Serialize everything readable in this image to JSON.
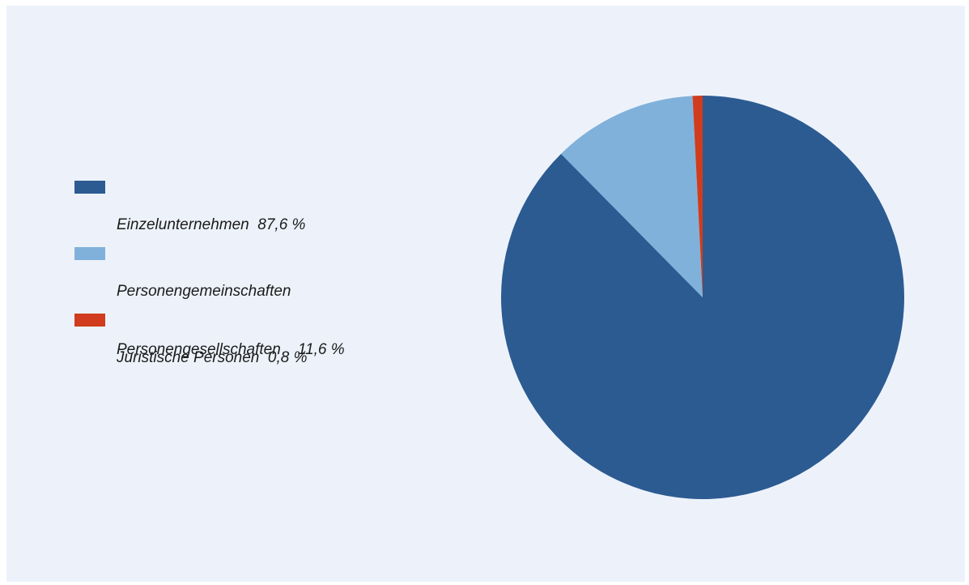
{
  "colors": {
    "background": "#edf2fa",
    "frame": "#ffffff"
  },
  "chart_data": {
    "type": "pie",
    "start": "top, clockwise",
    "slices": [
      {
        "name": "Einzelunternehmen",
        "value": 87.6,
        "label_lines": [
          "Einzelunternehmen  87,6 %"
        ],
        "color": "#2c5b92"
      },
      {
        "name": "Personengemeinschaften Personengesellschaften",
        "value": 11.6,
        "label_lines": [
          "Personengemeinschaften",
          "Personengesellschaften    11,6 %"
        ],
        "color": "#80b1db"
      },
      {
        "name": "Juristische Personen",
        "value": 0.8,
        "label_lines": [
          "Juristische Personen  0,8 %"
        ],
        "color": "#d03c1d"
      }
    ],
    "legend_position": "left"
  }
}
